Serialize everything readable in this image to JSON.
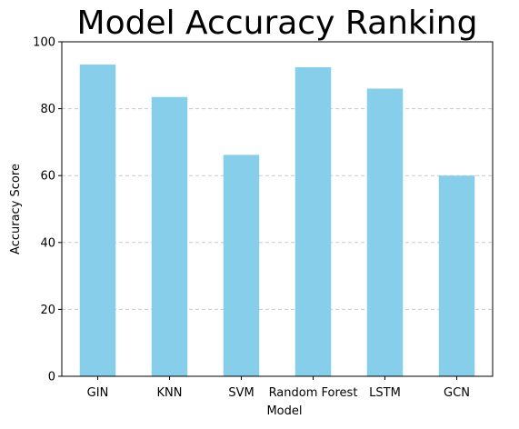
{
  "chart_data": {
    "type": "bar",
    "title": "Model Accuracy Ranking",
    "xlabel": "Model",
    "ylabel": "Accuracy Score",
    "categories": [
      "GIN",
      "KNN",
      "SVM",
      "Random Forest",
      "LSTM",
      "GCN"
    ],
    "values": [
      93.2,
      83.5,
      66.2,
      92.4,
      86.0,
      60.0
    ],
    "ylim": [
      0,
      100
    ],
    "yticks": [
      0,
      20,
      40,
      60,
      80,
      100
    ],
    "grid": "horizontal dashed",
    "colors": {
      "bar": "#87CEEB",
      "grid": "#c8c8c8",
      "axis": "#000000"
    }
  }
}
